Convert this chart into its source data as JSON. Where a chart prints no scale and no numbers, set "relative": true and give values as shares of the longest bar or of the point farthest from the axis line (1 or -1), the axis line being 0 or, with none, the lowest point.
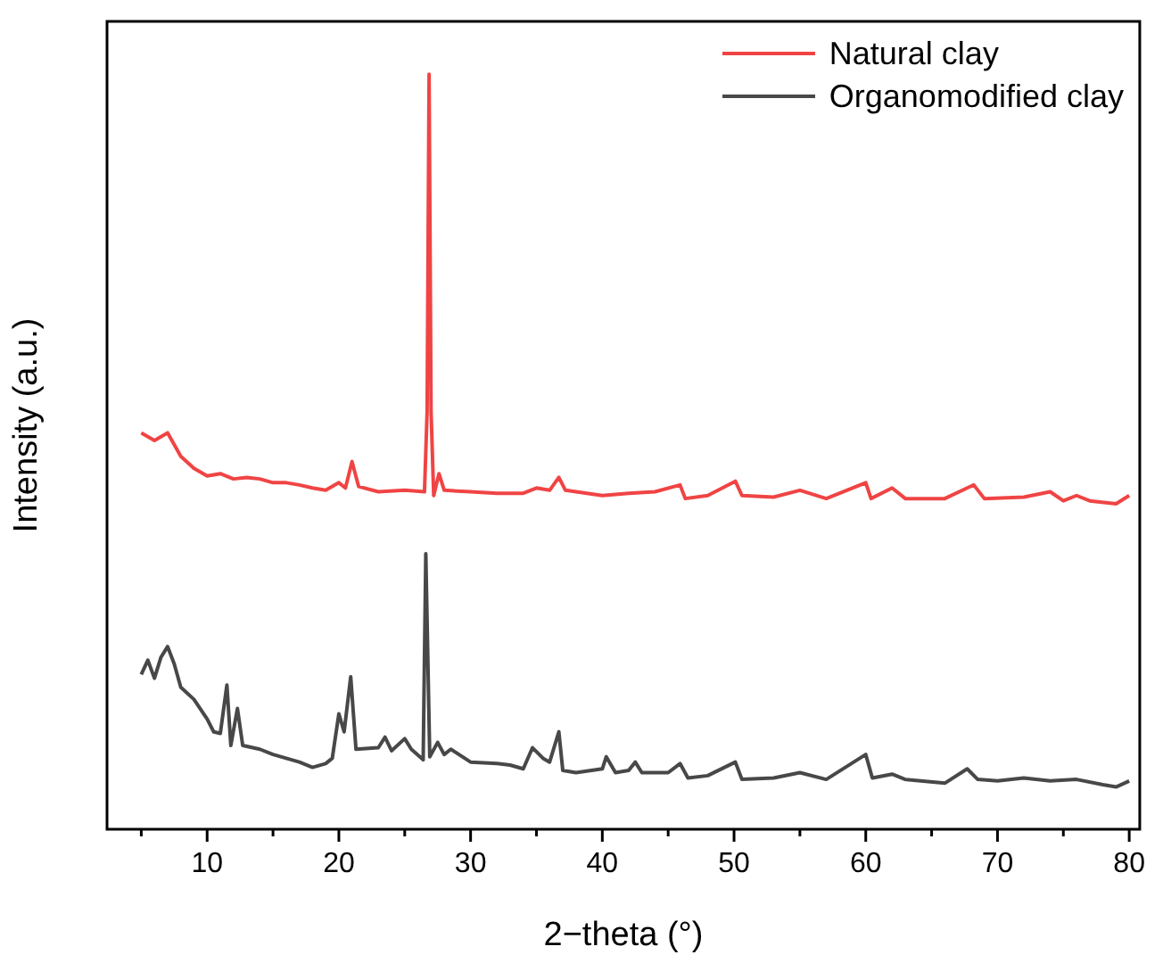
{
  "chart_data": {
    "type": "line",
    "relative": true,
    "xlabel": "2−theta (°)",
    "ylabel": "Intensity (a.u.)",
    "xlim": [
      2.4,
      80.8
    ],
    "xticks": [
      {
        "value": 5,
        "label": null
      },
      10,
      {
        "value": 15,
        "label": null
      },
      20,
      {
        "value": 25,
        "label": null
      },
      30,
      {
        "value": 35,
        "label": null
      },
      40,
      {
        "value": 45,
        "label": null
      },
      50,
      {
        "value": 55,
        "label": null
      },
      60,
      {
        "value": 65,
        "label": null
      },
      70,
      {
        "value": 75,
        "label": null
      },
      80
    ],
    "legend": "top right",
    "marker": "none",
    "line_style": "solid",
    "grid": false,
    "series": [
      {
        "name": "Natural clay",
        "color": "#f04444",
        "x": [
          5,
          6,
          7,
          8,
          9,
          10,
          11,
          12,
          13,
          14,
          15,
          16,
          17,
          18,
          19,
          20,
          20.5,
          21,
          21.5,
          23,
          25,
          26.5,
          26.7,
          26.85,
          27,
          27.2,
          27.6,
          28,
          30,
          32,
          34,
          35,
          36,
          36.7,
          37.2,
          40,
          42,
          44,
          45.9,
          46.3,
          48,
          50.1,
          50.6,
          53,
          55,
          57,
          60,
          60.4,
          62,
          63,
          66,
          67.7,
          68.2,
          69,
          72,
          74,
          75,
          76,
          77,
          79,
          80
        ],
        "values": [
          0.525,
          0.515,
          0.525,
          0.494,
          0.478,
          0.468,
          0.471,
          0.464,
          0.466,
          0.464,
          0.459,
          0.459,
          0.456,
          0.452,
          0.449,
          0.459,
          0.452,
          0.487,
          0.454,
          0.447,
          0.449,
          0.447,
          0.553,
          1,
          0.553,
          0.442,
          0.471,
          0.449,
          0.447,
          0.445,
          0.445,
          0.452,
          0.449,
          0.466,
          0.449,
          0.442,
          0.445,
          0.447,
          0.456,
          0.438,
          0.442,
          0.461,
          0.442,
          0.44,
          0.449,
          0.438,
          0.459,
          0.438,
          0.452,
          0.438,
          0.438,
          0.452,
          0.456,
          0.438,
          0.44,
          0.447,
          0.435,
          0.442,
          0.435,
          0.431,
          0.442
        ]
      },
      {
        "name": "Organomodified clay",
        "color": "#484848",
        "x": [
          5,
          5.5,
          6,
          6.5,
          7,
          7.5,
          8,
          9,
          10,
          10.5,
          11,
          11.5,
          11.8,
          12.3,
          12.7,
          14,
          15,
          17,
          18,
          19,
          19.5,
          20,
          20.4,
          20.9,
          21.3,
          23,
          23.5,
          24,
          25,
          25.5,
          26.4,
          26.6,
          26.9,
          27.5,
          28,
          28.5,
          30,
          32,
          33,
          34,
          34.7,
          35.5,
          36,
          36.7,
          37,
          38,
          40,
          40.3,
          41,
          42,
          42.5,
          43,
          45,
          45.9,
          46.5,
          48,
          50.1,
          50.6,
          53,
          55,
          57,
          60,
          60.5,
          62,
          63,
          66,
          67.7,
          68.5,
          70,
          72,
          74,
          76,
          78,
          79,
          80
        ],
        "values": [
          0.205,
          0.224,
          0.2,
          0.228,
          0.242,
          0.219,
          0.188,
          0.172,
          0.146,
          0.129,
          0.127,
          0.191,
          0.111,
          0.16,
          0.111,
          0.106,
          0.099,
          0.089,
          0.082,
          0.087,
          0.094,
          0.153,
          0.129,
          0.202,
          0.106,
          0.108,
          0.122,
          0.104,
          0.12,
          0.106,
          0.092,
          0.365,
          0.096,
          0.115,
          0.099,
          0.106,
          0.089,
          0.087,
          0.085,
          0.08,
          0.108,
          0.094,
          0.089,
          0.129,
          0.078,
          0.075,
          0.08,
          0.096,
          0.075,
          0.078,
          0.089,
          0.075,
          0.075,
          0.087,
          0.068,
          0.071,
          0.089,
          0.066,
          0.068,
          0.075,
          0.066,
          0.099,
          0.068,
          0.073,
          0.066,
          0.061,
          0.08,
          0.066,
          0.064,
          0.068,
          0.064,
          0.066,
          0.059,
          0.056,
          0.064
        ]
      }
    ]
  }
}
